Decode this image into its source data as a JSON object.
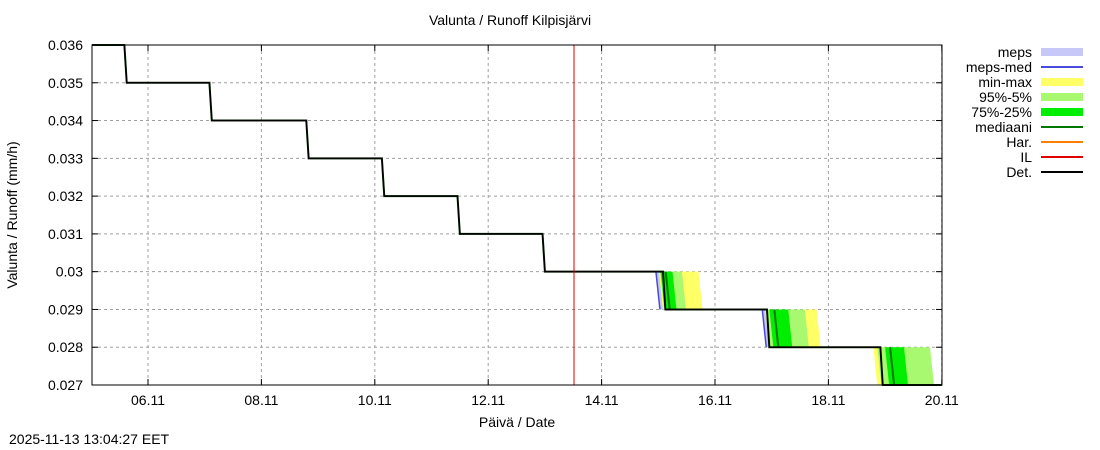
{
  "chart_data": {
    "type": "line",
    "title": "Valunta / Runoff  Kilpisjärvi",
    "xlabel": "Päivä / Date",
    "ylabel": "Valunta / Runoff (mm/h)",
    "ylim": [
      0.027,
      0.036
    ],
    "yticks": [
      "0.036",
      "0.035",
      "0.034",
      "0.033",
      "0.032",
      "0.031",
      "0.03",
      "0.029",
      "0.028",
      "0.027"
    ],
    "xticks": [
      "06.11",
      "08.11",
      "10.11",
      "12.11",
      "14.11",
      "16.11",
      "18.11",
      "20.11"
    ],
    "grid": true,
    "legend_position": "right",
    "legend": [
      {
        "label": "meps",
        "color": "#c8c8f8",
        "style": "band"
      },
      {
        "label": "meps-med",
        "color": "#4a4adc",
        "style": "line"
      },
      {
        "label": "min-max",
        "color": "#ffff66",
        "style": "band"
      },
      {
        "label": "95%-5%",
        "color": "#a8f870",
        "style": "band"
      },
      {
        "label": "75%-25%",
        "color": "#00ee00",
        "style": "band"
      },
      {
        "label": "mediaani",
        "color": "#007800",
        "style": "line"
      },
      {
        "label": "Har.",
        "color": "#ff8000",
        "style": "line"
      },
      {
        "label": "IL",
        "color": "#e00000",
        "style": "line"
      },
      {
        "label": "Det.",
        "color": "#000000",
        "style": "line"
      }
    ],
    "now_marker": {
      "date": "13.11 ~14:00",
      "color": "#e00000"
    },
    "series": [
      {
        "name": "Det.",
        "points": [
          [
            "05.11 00:00",
            0.036
          ],
          [
            "05.11 14:00",
            0.036
          ],
          [
            "05.11 15:00",
            0.035
          ],
          [
            "07.11 02:00",
            0.035
          ],
          [
            "07.11 03:00",
            0.034
          ],
          [
            "08.11 19:00",
            0.034
          ],
          [
            "08.11 20:00",
            0.033
          ],
          [
            "10.11 03:00",
            0.033
          ],
          [
            "10.11 04:00",
            0.032
          ],
          [
            "11.11 11:00",
            0.032
          ],
          [
            "11.11 12:00",
            0.031
          ],
          [
            "12.11 23:00",
            0.031
          ],
          [
            "13.11 00:00",
            0.03
          ],
          [
            "15.11 02:00",
            0.03
          ],
          [
            "15.11 03:00",
            0.029
          ],
          [
            "16.11 22:00",
            0.029
          ],
          [
            "16.11 23:00",
            0.028
          ],
          [
            "18.11 22:00",
            0.028
          ],
          [
            "18.11 23:00",
            0.027
          ],
          [
            "20.11 00:00",
            0.027
          ]
        ]
      }
    ],
    "ensemble_transitions": [
      {
        "from": 0.03,
        "to": 0.029,
        "meps_med_start": "14.11 23:00",
        "p75_25": [
          "15.11 01:00",
          "15.11 06:00"
        ],
        "p95_5_end": "15.11 10:00",
        "minmax_end": "15.11 17:00"
      },
      {
        "from": 0.029,
        "to": 0.028,
        "meps_med_start": "16.11 20:00",
        "p75_25": [
          "16.11 23:00",
          "17.11 07:00"
        ],
        "p95_5_end": "17.11 14:00",
        "minmax_end": "17.11 19:00"
      },
      {
        "from": 0.028,
        "to": 0.027,
        "minmax_start": "18.11 19:00",
        "p75_25": [
          "19.11 00:00",
          "19.11 08:00"
        ],
        "p95_5_end": "19.11 19:00"
      }
    ]
  },
  "footer": {
    "timestamp": "2025-11-13 13:04:27 EET"
  }
}
